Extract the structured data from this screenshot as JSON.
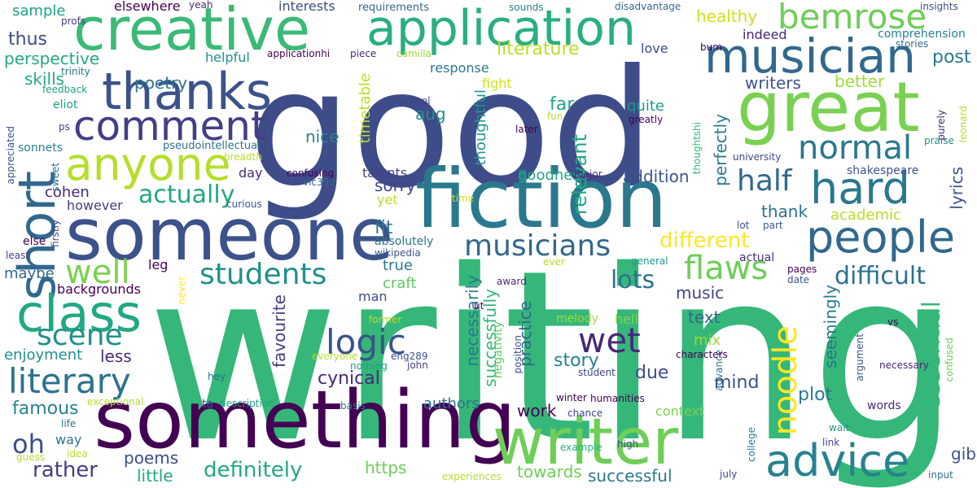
{
  "words": [
    {
      "text": "good",
      "color": "#3e4c8a"
    },
    {
      "text": "writing",
      "color": "#35b779"
    },
    {
      "text": "something",
      "color": "#440154"
    },
    {
      "text": "fiction",
      "color": "#2a788e"
    },
    {
      "text": "someone",
      "color": "#3b528b"
    },
    {
      "text": "creative",
      "color": "#3aba76"
    },
    {
      "text": "application",
      "color": "#29af7f"
    },
    {
      "text": "great",
      "color": "#7ad151"
    },
    {
      "text": "musician",
      "color": "#31688e"
    },
    {
      "text": "writer",
      "color": "#6ece58"
    },
    {
      "text": "thanks",
      "color": "#3b528b"
    },
    {
      "text": "comment",
      "color": "#433e85"
    },
    {
      "text": "anyone",
      "color": "#b5de2b"
    },
    {
      "text": "short",
      "color": "#31688e"
    },
    {
      "text": "class",
      "color": "#22a884"
    },
    {
      "text": "people",
      "color": "#31688e"
    },
    {
      "text": "hard",
      "color": "#2a788e"
    },
    {
      "text": "advice",
      "color": "#26828e"
    },
    {
      "text": "bemrose",
      "color": "#6ece58"
    },
    {
      "text": "normal",
      "color": "#2a788e"
    },
    {
      "text": "half",
      "color": "#31688e"
    },
    {
      "text": "flaws",
      "color": "#6ece58"
    },
    {
      "text": "musicians",
      "color": "#31688e"
    },
    {
      "text": "students",
      "color": "#21918c"
    },
    {
      "text": "literary",
      "color": "#2c728e"
    },
    {
      "text": "scene",
      "color": "#21918c"
    },
    {
      "text": "logic",
      "color": "#3b528b"
    },
    {
      "text": "wet",
      "color": "#482878"
    },
    {
      "text": "noodle",
      "color": "#fde725"
    },
    {
      "text": "well",
      "color": "#7ad151"
    },
    {
      "text": "lots",
      "color": "#2c728e"
    },
    {
      "text": "difficult",
      "color": "#2c728e"
    },
    {
      "text": "different",
      "color": "#fde725"
    },
    {
      "text": "essential",
      "color": "#35b779"
    },
    {
      "text": "actually",
      "color": "#22a884"
    },
    {
      "text": "literature",
      "color": "#bddf26"
    },
    {
      "text": "post",
      "color": "#2a788e"
    },
    {
      "text": "thus",
      "color": "#3e4c8a"
    },
    {
      "text": "perspective",
      "color": "#22a884"
    },
    {
      "text": "poetry",
      "color": "#2c728e"
    },
    {
      "text": "healthy",
      "color": "#d0e11c"
    },
    {
      "text": "writers",
      "color": "#3b528b"
    },
    {
      "text": "better",
      "color": "#a0da39"
    },
    {
      "text": "skills",
      "color": "#22a884"
    },
    {
      "text": "cohen",
      "color": "#482878"
    },
    {
      "text": "sorry",
      "color": "#414487"
    },
    {
      "text": "fit",
      "color": "#2a788e"
    },
    {
      "text": "aug",
      "color": "#21918c"
    },
    {
      "text": "far",
      "color": "#22a884"
    },
    {
      "text": "relevant",
      "color": "#22a884"
    },
    {
      "text": "timetable",
      "color": "#bddf26"
    },
    {
      "text": "thoughtful",
      "color": "#1f988b"
    },
    {
      "text": "nice",
      "color": "#26828e"
    },
    {
      "text": "quite",
      "color": "#1f988b"
    },
    {
      "text": "perfectly",
      "color": "#2a788e"
    },
    {
      "text": "addition",
      "color": "#39568c"
    },
    {
      "text": "goodness",
      "color": "#22a884"
    },
    {
      "text": "thank",
      "color": "#2c728e"
    },
    {
      "text": "lyrics",
      "color": "#3b528b"
    },
    {
      "text": "academic",
      "color": "#b5de2b"
    },
    {
      "text": "definitely",
      "color": "#22a884"
    },
    {
      "text": "rather",
      "color": "#433e85"
    },
    {
      "text": "oh",
      "color": "#3e4c8a"
    },
    {
      "text": "famous",
      "color": "#26828e"
    },
    {
      "text": "enjoyment",
      "color": "#21918c"
    },
    {
      "text": "less",
      "color": "#482878"
    },
    {
      "text": "cynical",
      "color": "#482878"
    },
    {
      "text": "favourite",
      "color": "#433e85"
    },
    {
      "text": "story",
      "color": "#26828e"
    },
    {
      "text": "due",
      "color": "#3e4c8a"
    },
    {
      "text": "necessarily",
      "color": "#2a788e"
    },
    {
      "text": "successfully",
      "color": "#35b779"
    },
    {
      "text": "practice",
      "color": "#31688e"
    },
    {
      "text": "mind",
      "color": "#3b528b"
    },
    {
      "text": "work",
      "color": "#440154"
    },
    {
      "text": "plot",
      "color": "#2a788e"
    },
    {
      "text": "seemingly",
      "color": "#2a788e"
    },
    {
      "text": "text",
      "color": "#31688e"
    },
    {
      "text": "music",
      "color": "#414487"
    },
    {
      "text": "mix",
      "color": "#a0da39"
    },
    {
      "text": "poems",
      "color": "#3e4c8a"
    },
    {
      "text": "little",
      "color": "#22a884"
    },
    {
      "text": "authors",
      "color": "#2c728e"
    },
    {
      "text": "towards",
      "color": "#6ece58"
    },
    {
      "text": "successful",
      "color": "#2a788e"
    },
    {
      "text": "gibb",
      "color": "#3b528b"
    },
    {
      "text": "context",
      "color": "#7ad151"
    },
    {
      "text": "https",
      "color": "#6ece58"
    },
    {
      "text": "craft",
      "color": "#5ec962"
    },
    {
      "text": "true",
      "color": "#2a788e"
    },
    {
      "text": "sample",
      "color": "#1fa187"
    },
    {
      "text": "elsewhere",
      "color": "#440154"
    },
    {
      "text": "interests",
      "color": "#3e4c8a"
    },
    {
      "text": "requirements",
      "color": "#31688e"
    },
    {
      "text": "response",
      "color": "#2a788e"
    },
    {
      "text": "fight",
      "color": "#d0e11c"
    },
    {
      "text": "love",
      "color": "#3e4c8a"
    },
    {
      "text": "helpful",
      "color": "#21918c"
    },
    {
      "text": "indeed",
      "color": "#482878"
    },
    {
      "text": "comprehension",
      "color": "#26828e"
    },
    {
      "text": "stories",
      "color": "#31688e"
    },
    {
      "text": "insights",
      "color": "#3e4c8a"
    },
    {
      "text": "disadvantage",
      "color": "#31688e"
    },
    {
      "text": "sounds",
      "color": "#26828e"
    },
    {
      "text": "maybe",
      "color": "#31688e"
    },
    {
      "text": "leg",
      "color": "#440154"
    },
    {
      "text": "backgrounds",
      "color": "#440154"
    },
    {
      "text": "however",
      "color": "#433e85"
    },
    {
      "text": "day",
      "color": "#482878"
    },
    {
      "text": "yet",
      "color": "#b5de2b"
    },
    {
      "text": "talents",
      "color": "#414487"
    },
    {
      "text": "absolutely",
      "color": "#2a788e"
    },
    {
      "text": "wikipedia",
      "color": "#39568c"
    },
    {
      "text": "man",
      "color": "#3e4c8a"
    },
    {
      "text": "melody",
      "color": "#a0da39"
    },
    {
      "text": "hell",
      "color": "#86d549"
    },
    {
      "text": "actual",
      "color": "#482878"
    },
    {
      "text": "pages",
      "color": "#440154"
    },
    {
      "text": "date",
      "color": "#39568c"
    },
    {
      "text": "award",
      "color": "#482878"
    },
    {
      "text": "shakespeare",
      "color": "#3b528b"
    },
    {
      "text": "sonnets",
      "color": "#26828e"
    },
    {
      "text": "pseudointellectual",
      "color": "#2c728e"
    },
    {
      "text": "eliot",
      "color": "#1fa187"
    },
    {
      "text": "trinity",
      "color": "#2a788e"
    },
    {
      "text": "applicationhi",
      "color": "#440154"
    },
    {
      "text": "piece",
      "color": "#482878"
    },
    {
      "text": "camilla",
      "color": "#a0da39"
    },
    {
      "text": "feedback",
      "color": "#1fa187"
    },
    {
      "text": "profs",
      "color": "#433e85"
    },
    {
      "text": "yeah",
      "color": "#482878"
    },
    {
      "text": "school",
      "color": "#433e85"
    },
    {
      "text": "later",
      "color": "#440154"
    },
    {
      "text": "fun",
      "color": "#b5de2b"
    },
    {
      "text": "greatly",
      "color": "#440154"
    },
    {
      "text": "thoughtshi",
      "color": "#35b779"
    },
    {
      "text": "university",
      "color": "#414487"
    },
    {
      "text": "praise",
      "color": "#21918c"
    },
    {
      "text": "leonard",
      "color": "#b5de2b"
    },
    {
      "text": "purely",
      "color": "#482878"
    },
    {
      "text": "major",
      "color": "#482878"
    },
    {
      "text": "time",
      "color": "#d0e11c"
    },
    {
      "text": "confusing",
      "color": "#440154"
    },
    {
      "text": "vic350",
      "color": "#31688e"
    },
    {
      "text": "breadth",
      "color": "#b5de2b"
    },
    {
      "text": "curious",
      "color": "#3b528b"
    },
    {
      "text": "appreciated",
      "color": "#3b528b"
    },
    {
      "text": "sweet",
      "color": "#2c728e"
    },
    {
      "text": "ps",
      "color": "#433e85"
    },
    {
      "text": "bum",
      "color": "#440154"
    },
    {
      "text": "firstly",
      "color": "#414487"
    },
    {
      "text": "else",
      "color": "#440154"
    },
    {
      "text": "least",
      "color": "#414487"
    },
    {
      "text": "never",
      "color": "#fde725"
    },
    {
      "text": "former",
      "color": "#b5de2b"
    },
    {
      "text": "everyone",
      "color": "#b5de2b"
    },
    {
      "text": "nothing",
      "color": "#1fa187"
    },
    {
      "text": "john",
      "color": "#433e85"
    },
    {
      "text": "eng289",
      "color": "#3b528b"
    },
    {
      "text": "negativity",
      "color": "#5ec962"
    },
    {
      "text": "ut",
      "color": "#440154"
    },
    {
      "text": "position",
      "color": "#3e4c8a"
    },
    {
      "text": "student",
      "color": "#414487"
    },
    {
      "text": "winter",
      "color": "#440154"
    },
    {
      "text": "humanities",
      "color": "#440154"
    },
    {
      "text": "advance",
      "color": "#2c728e"
    },
    {
      "text": "characters",
      "color": "#440154"
    },
    {
      "text": "necessary",
      "color": "#482878"
    },
    {
      "text": "argument",
      "color": "#3b528b"
    },
    {
      "text": "vs",
      "color": "#440154"
    },
    {
      "text": "confused",
      "color": "#6ece58"
    },
    {
      "text": "hey",
      "color": "#2c728e"
    },
    {
      "text": "ta",
      "color": "#3b528b"
    },
    {
      "text": "description",
      "color": "#1fa187"
    },
    {
      "text": "exceptional",
      "color": "#b5de2b"
    },
    {
      "text": "basis",
      "color": "#2c728e"
    },
    {
      "text": "chance",
      "color": "#414487"
    },
    {
      "text": "words",
      "color": "#482878"
    },
    {
      "text": "wait",
      "color": "#1f988b"
    },
    {
      "text": "link",
      "color": "#414487"
    },
    {
      "text": "college",
      "color": "#2a788e"
    },
    {
      "text": "life",
      "color": "#2c728e"
    },
    {
      "text": "idea",
      "color": "#b5de2b"
    },
    {
      "text": "guess",
      "color": "#b5de2b"
    },
    {
      "text": "way",
      "color": "#2c728e"
    },
    {
      "text": "experiences",
      "color": "#b5de2b"
    },
    {
      "text": "example",
      "color": "#29af7f"
    },
    {
      "text": "high",
      "color": "#3b528b"
    },
    {
      "text": "july",
      "color": "#3e4c8a"
    },
    {
      "text": "input",
      "color": "#2c728e"
    },
    {
      "text": "lot",
      "color": "#3e4c8a"
    },
    {
      "text": "part",
      "color": "#39568c"
    },
    {
      "text": "general",
      "color": "#1f988b"
    },
    {
      "text": "ever",
      "color": "#b5de2b"
    }
  ]
}
